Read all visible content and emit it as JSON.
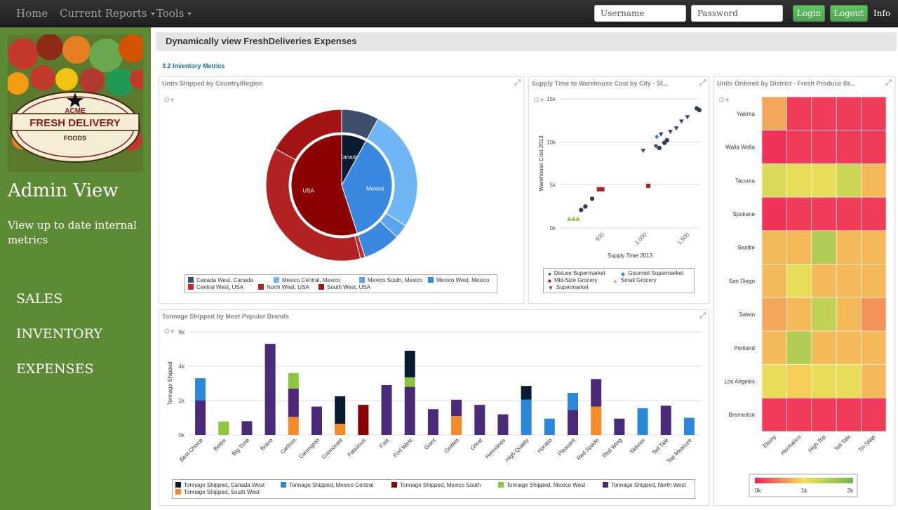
{
  "nav": {
    "home": "Home",
    "current_reports": "Current Reports",
    "tools": "Tools",
    "username_placeholder": "Username",
    "password_placeholder": "Password",
    "login": "Login",
    "logout": "Logout",
    "info": "Info"
  },
  "sidebar": {
    "logo": {
      "acme": "ACME",
      "name": "FRESH DELIVERY",
      "foods": "FOODS"
    },
    "title": "Admin View",
    "subtitle": "View up to date internal metrics",
    "items": [
      {
        "label": "SALES"
      },
      {
        "label": "INVENTORY"
      },
      {
        "label": "EXPENSES"
      }
    ]
  },
  "main": {
    "title": "Dynamically view FreshDeliveries Expenses",
    "section": "3.2 Inventory Metrics"
  },
  "panels": {
    "pie": {
      "title": "Units Shipped by Country/Region"
    },
    "scatter": {
      "title": "Supply Time to Warehouse Cost by City - St..."
    },
    "heatmap": {
      "title": "Units Ordered by District - Fresh Produce Br..."
    },
    "bars": {
      "title": "Tonnage Shipped by Most Popular Brands"
    }
  },
  "colors": {
    "canada": "#243a5e",
    "mexico_central": "#6fb6f5",
    "mexico_south": "#5aa5ee",
    "mexico_west": "#3a88e0",
    "usa_central": "#b71c1c",
    "usa_north": "#b22222",
    "usa_south": "#990000",
    "deluxe": "#2f3e5c",
    "gourmet": "#3a88e0",
    "midsize": "#b02020",
    "small": "#8bc34a",
    "supermarket": "#3b3b78",
    "bar_canada_west": "#0b1a33",
    "bar_mexico_central": "#2b87d8",
    "bar_mexico_south": "#8b0000",
    "bar_mexico_west": "#8cc63f",
    "bar_north_west": "#4b2a7a",
    "bar_south_west": "#f58a2a"
  },
  "chart_data": [
    {
      "type": "pie",
      "title": "Units Shipped by Country/Region",
      "inner": [
        {
          "label": "Canada",
          "value": 8,
          "color": "#0b1a33"
        },
        {
          "label": "Mexico",
          "value": 37,
          "color": "#3a88e0"
        },
        {
          "label": "USA",
          "value": 55,
          "color": "#8b0000"
        }
      ],
      "outer": [
        {
          "label": "Canada West, Canada",
          "value": 8,
          "color": "#3d4e6b"
        },
        {
          "label": "Mexico Central, Mexico",
          "value": 26,
          "color": "#6fb6f5"
        },
        {
          "label": "Mexico South, Mexico",
          "value": 3,
          "color": "#5aa5ee"
        },
        {
          "label": "Mexico West, Mexico",
          "value": 8,
          "color": "#3a88e0"
        },
        {
          "label": "Central West, USA",
          "value": 1,
          "color": "#c62828"
        },
        {
          "label": "North West, USA",
          "value": 37,
          "color": "#b22222"
        },
        {
          "label": "South West, USA",
          "value": 17,
          "color": "#a31515"
        }
      ]
    },
    {
      "type": "scatter",
      "title": "Supply Time to Warehouse Cost by City - St...",
      "xlabel": "Supply Time 2013",
      "ylabel": "Warehouse Cost 2013",
      "xlim": [
        0,
        1650
      ],
      "ylim": [
        0,
        15000
      ],
      "yticks": [
        {
          "v": 0,
          "label": "0k"
        },
        {
          "v": 5000,
          "label": "5k"
        },
        {
          "v": 10000,
          "label": "10k"
        },
        {
          "v": 15000,
          "label": "15k"
        }
      ],
      "xticks": [
        {
          "v": 500,
          "label": "500"
        },
        {
          "v": 1000,
          "label": "1,000"
        },
        {
          "v": 1500,
          "label": "1,500"
        }
      ],
      "series": [
        {
          "name": "Deluxe Supermarket",
          "marker": "circle",
          "color": "#2f3e5c",
          "points": [
            [
              250,
              2100
            ],
            [
              300,
              2500
            ],
            [
              380,
              3400
            ],
            [
              1170,
              9300
            ],
            [
              1230,
              9900
            ],
            [
              1260,
              10200
            ],
            [
              1610,
              13900
            ],
            [
              1640,
              13700
            ]
          ]
        },
        {
          "name": "Gourmet Supermarket",
          "marker": "diamond",
          "color": "#3a88e0",
          "points": [
            [
              1140,
              10600
            ]
          ]
        },
        {
          "name": "Mid-Size Grocery",
          "marker": "square",
          "color": "#b02020",
          "points": [
            [
              460,
              4500
            ],
            [
              500,
              4500
            ],
            [
              1040,
              4900
            ]
          ]
        },
        {
          "name": "Small Grocery",
          "marker": "triangle",
          "color": "#8bc34a",
          "points": [
            [
              110,
              1050
            ],
            [
              160,
              1050
            ],
            [
              210,
              1050
            ]
          ]
        },
        {
          "name": "Supermarket",
          "marker": "triangle-down",
          "color": "#3b3b78",
          "points": [
            [
              980,
              9000
            ],
            [
              1130,
              9500
            ],
            [
              1190,
              10900
            ],
            [
              1300,
              11200
            ],
            [
              1370,
              11600
            ],
            [
              1430,
              12400
            ],
            [
              1500,
              12900
            ]
          ]
        }
      ]
    },
    {
      "type": "heatmap",
      "title": "Units Ordered by District - Fresh Produce Br...",
      "rows": [
        "Yakima",
        "Walla Walla",
        "Tacoma",
        "Spokane",
        "Seattle",
        "San Diego",
        "Salem",
        "Portland",
        "Los Angeles",
        "Bremerton"
      ],
      "cols": [
        "Ebony",
        "Hermanos",
        "High Top",
        "Tell Tale",
        "Tri-State"
      ],
      "colorscale": {
        "min": 0,
        "max": 2000,
        "ticks": [
          "0k",
          "1k",
          "2k"
        ]
      },
      "values": [
        [
          700,
          150,
          150,
          150,
          150
        ],
        [
          100,
          150,
          150,
          150,
          150
        ],
        [
          1200,
          1100,
          1100,
          1300,
          800
        ],
        [
          100,
          150,
          150,
          150,
          150
        ],
        [
          800,
          800,
          1500,
          800,
          800
        ],
        [
          800,
          1100,
          800,
          800,
          800
        ],
        [
          700,
          800,
          1400,
          800,
          600
        ],
        [
          800,
          1500,
          800,
          800,
          800
        ],
        [
          1100,
          900,
          1100,
          1100,
          800
        ],
        [
          150,
          150,
          150,
          150,
          150
        ]
      ]
    },
    {
      "type": "bar",
      "stacked": true,
      "title": "Tonnage Shipped by Most Popular Brands",
      "ylabel": "Tonnage Shipped",
      "ylim": [
        0,
        6000
      ],
      "yticks": [
        {
          "v": 0,
          "label": "0k"
        },
        {
          "v": 2000,
          "label": "2k"
        },
        {
          "v": 4000,
          "label": "4k"
        },
        {
          "v": 6000,
          "label": "6k"
        }
      ],
      "categories": [
        "Best Choice",
        "Better",
        "Big Time",
        "Bravo",
        "Carlson",
        "Carrington",
        "Cormorant",
        "Fabulous",
        "Fast",
        "Fort West",
        "Giant",
        "Golden",
        "Great",
        "Hermanos",
        "High Quality",
        "Horatio",
        "Pleasant",
        "Red Spade",
        "Red Wing",
        "Skinner",
        "Tell Tale",
        "Top Measure"
      ],
      "series": [
        {
          "name": "Tonnage Shipped, South West",
          "color": "#f58a2a",
          "values": [
            0,
            0,
            0,
            0,
            1050,
            0,
            650,
            0,
            0,
            0,
            0,
            1100,
            0,
            0,
            0,
            0,
            0,
            1650,
            0,
            0,
            0,
            0
          ]
        },
        {
          "name": "Tonnage Shipped, North West",
          "color": "#4b2a7a",
          "values": [
            2000,
            0,
            800,
            5300,
            1650,
            1650,
            0,
            0,
            2900,
            2800,
            1500,
            950,
            1750,
            1200,
            0,
            0,
            1450,
            1600,
            950,
            0,
            1700,
            0
          ]
        },
        {
          "name": "Tonnage Shipped, Mexico West",
          "color": "#8cc63f",
          "values": [
            0,
            780,
            0,
            0,
            900,
            0,
            0,
            0,
            0,
            550,
            0,
            0,
            0,
            0,
            0,
            0,
            0,
            0,
            0,
            0,
            0,
            0
          ]
        },
        {
          "name": "Tonnage Shipped, Mexico South",
          "color": "#8b0000",
          "values": [
            0,
            0,
            0,
            0,
            0,
            0,
            0,
            1750,
            0,
            0,
            0,
            0,
            0,
            0,
            0,
            0,
            0,
            0,
            0,
            0,
            0,
            0
          ]
        },
        {
          "name": "Tonnage Shipped, Mexico Central",
          "color": "#2b87d8",
          "values": [
            1300,
            0,
            0,
            0,
            0,
            0,
            0,
            0,
            0,
            0,
            0,
            0,
            0,
            0,
            2050,
            950,
            1000,
            0,
            0,
            1550,
            0,
            1000
          ]
        },
        {
          "name": "Tonnage Shipped, Canada West",
          "color": "#0b1a33",
          "values": [
            0,
            0,
            0,
            0,
            0,
            0,
            1600,
            0,
            0,
            1550,
            0,
            0,
            0,
            0,
            800,
            0,
            0,
            0,
            0,
            0,
            0,
            0
          ]
        }
      ],
      "legend_order": [
        "Tonnage Shipped, Canada West",
        "Tonnage Shipped, Mexico Central",
        "Tonnage Shipped, Mexico South",
        "Tonnage Shipped, Mexico West",
        "Tonnage Shipped, North West",
        "Tonnage Shipped, South West"
      ]
    }
  ]
}
